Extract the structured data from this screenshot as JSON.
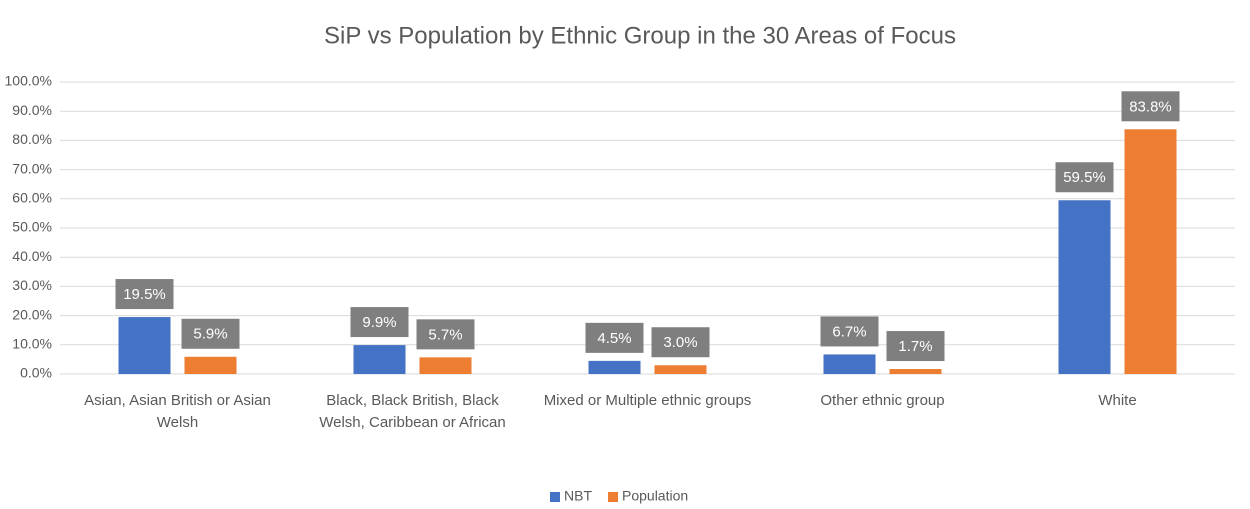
{
  "chart_data": {
    "type": "bar",
    "title": "SiP vs Population by Ethnic Group in the 30 Areas of Focus",
    "categories": [
      "Asian, Asian British or Asian Welsh",
      "Black, Black British, Black Welsh, Caribbean or African",
      "Mixed or Multiple ethnic groups",
      "Other ethnic group",
      "White"
    ],
    "series": [
      {
        "name": "NBT",
        "color": "#4472c4",
        "values": [
          19.5,
          9.9,
          4.5,
          6.7,
          59.5
        ],
        "value_labels": [
          "19.5%",
          "9.9%",
          "4.5%",
          "6.7%",
          "59.5%"
        ]
      },
      {
        "name": "Population",
        "color": "#ed7d31",
        "values": [
          5.9,
          5.7,
          3.0,
          1.7,
          83.8
        ],
        "value_labels": [
          "5.9%",
          "5.7%",
          "3.0%",
          "1.7%",
          "83.8%"
        ]
      }
    ],
    "ylim": [
      0,
      100
    ],
    "yticks": [
      {
        "value": 0,
        "label": "0.0%"
      },
      {
        "value": 10,
        "label": "10.0%"
      },
      {
        "value": 20,
        "label": "20.0%"
      },
      {
        "value": 30,
        "label": "30.0%"
      },
      {
        "value": 40,
        "label": "40.0%"
      },
      {
        "value": 50,
        "label": "50.0%"
      },
      {
        "value": 60,
        "label": "60.0%"
      },
      {
        "value": 70,
        "label": "70.0%"
      },
      {
        "value": 80,
        "label": "80.0%"
      },
      {
        "value": 90,
        "label": "90.0%"
      },
      {
        "value": 100,
        "label": "100.0%"
      }
    ],
    "grid": true,
    "legend": "bottom"
  }
}
